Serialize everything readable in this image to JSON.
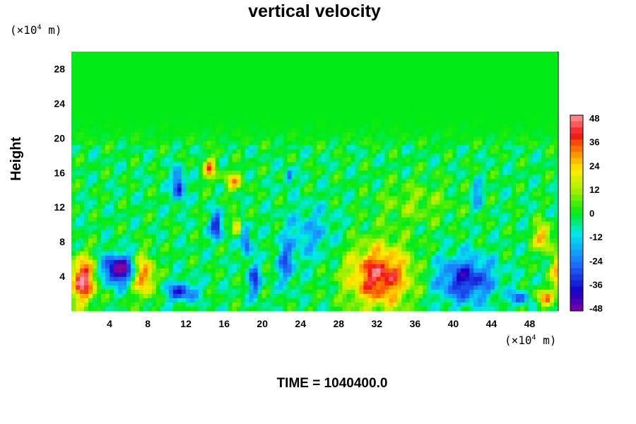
{
  "chart_data": {
    "type": "heatmap",
    "title": "vertical velocity",
    "ylabel": "Height",
    "xunit_label": "(×10",
    "xunit_exp": "4",
    "xunit_suffix": " m)",
    "yunit_label": "(×10",
    "yunit_exp": "4",
    "yunit_suffix": " m)",
    "xlim": [
      0,
      51
    ],
    "ylim": [
      0,
      30
    ],
    "x_ticks": [
      4,
      8,
      12,
      16,
      20,
      24,
      28,
      32,
      36,
      40,
      44,
      48
    ],
    "y_ticks": [
      4,
      8,
      12,
      16,
      20,
      24,
      28
    ],
    "colorbar": {
      "min": -48,
      "max": 48,
      "ticks": [
        48,
        36,
        24,
        12,
        0,
        -12,
        -24,
        -36,
        -48
      ]
    },
    "background_value": -4,
    "features": [
      {
        "x": 1.2,
        "y": 3.5,
        "value": 48,
        "sx": 1.3,
        "sy": 2.6
      },
      {
        "x": 4.9,
        "y": 4.8,
        "value": -50,
        "sx": 1.6,
        "sy": 1.6
      },
      {
        "x": 7.6,
        "y": 4.0,
        "value": 36,
        "sx": 1.1,
        "sy": 2.4
      },
      {
        "x": 11.5,
        "y": 2.2,
        "value": -30,
        "sx": 1.6,
        "sy": 1.1
      },
      {
        "x": 11.2,
        "y": 14.5,
        "value": -36,
        "sx": 0.6,
        "sy": 1.8
      },
      {
        "x": 14.5,
        "y": 16.5,
        "value": 30,
        "sx": 0.7,
        "sy": 1.3
      },
      {
        "x": 15.2,
        "y": 9.8,
        "value": -36,
        "sx": 0.6,
        "sy": 1.5
      },
      {
        "x": 17.3,
        "y": 10.0,
        "value": 30,
        "sx": 0.4,
        "sy": 1.2
      },
      {
        "x": 18.3,
        "y": 8.0,
        "value": -30,
        "sx": 0.5,
        "sy": 1.6
      },
      {
        "x": 17.0,
        "y": 15.0,
        "value": 24,
        "sx": 1.0,
        "sy": 1.1
      },
      {
        "x": 19.2,
        "y": 3.5,
        "value": -30,
        "sx": 0.6,
        "sy": 1.8
      },
      {
        "x": 22.5,
        "y": 5.5,
        "value": -24,
        "sx": 0.8,
        "sy": 2.5
      },
      {
        "x": 22.8,
        "y": 15.5,
        "value": -24,
        "sx": 0.4,
        "sy": 1.0
      },
      {
        "x": 32.3,
        "y": 4.0,
        "value": 44,
        "sx": 3.3,
        "sy": 3.6
      },
      {
        "x": 41.3,
        "y": 3.6,
        "value": -34,
        "sx": 3.0,
        "sy": 2.6
      },
      {
        "x": 42.5,
        "y": 13.5,
        "value": -20,
        "sx": 0.6,
        "sy": 1.4
      },
      {
        "x": 47.0,
        "y": 1.5,
        "value": -24,
        "sx": 1.0,
        "sy": 0.8
      },
      {
        "x": 49.4,
        "y": 8.5,
        "value": 30,
        "sx": 0.9,
        "sy": 1.6
      },
      {
        "x": 49.6,
        "y": 1.5,
        "value": 30,
        "sx": 0.9,
        "sy": 1.0
      },
      {
        "x": 51.0,
        "y": 4.5,
        "value": 26,
        "sx": 0.8,
        "sy": 2.0
      },
      {
        "x": 25.0,
        "y": 9.0,
        "value": -14,
        "sx": 2.5,
        "sy": 3.0
      },
      {
        "x": 36.0,
        "y": 12.5,
        "value": 10,
        "sx": 4.0,
        "sy": 2.5
      }
    ],
    "time_label": "TIME = 1040400.0"
  }
}
